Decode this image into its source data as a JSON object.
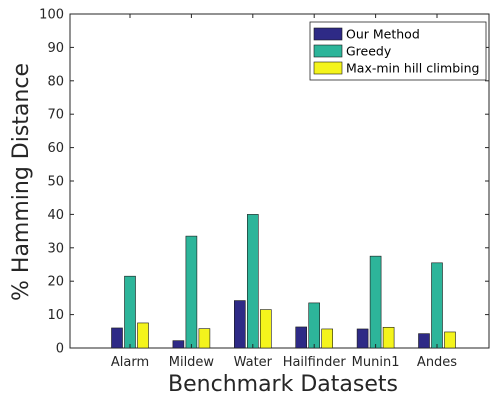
{
  "chart_data": {
    "type": "bar",
    "title": "",
    "xlabel": "Benchmark Datasets",
    "ylabel": "% Hamming Distance",
    "ylim": [
      0,
      100
    ],
    "yticks": [
      0,
      10,
      20,
      30,
      40,
      50,
      60,
      70,
      80,
      90,
      100
    ],
    "categories": [
      "Alarm",
      "Mildew",
      "Water",
      "Hailfinder",
      "Munin1",
      "Andes"
    ],
    "series": [
      {
        "name": "Our Method",
        "color": "#2e2a86",
        "values": [
          6.0,
          2.2,
          14.2,
          6.3,
          5.7,
          4.3
        ]
      },
      {
        "name": "Greedy",
        "color": "#2db59a",
        "values": [
          21.5,
          33.5,
          40.0,
          13.5,
          27.5,
          25.5
        ]
      },
      {
        "name": "Max-min hill climbing",
        "color": "#f4f41c",
        "values": [
          7.5,
          5.8,
          11.5,
          5.7,
          6.2,
          4.8
        ]
      }
    ],
    "legend_position": "top-right",
    "grid": false
  }
}
